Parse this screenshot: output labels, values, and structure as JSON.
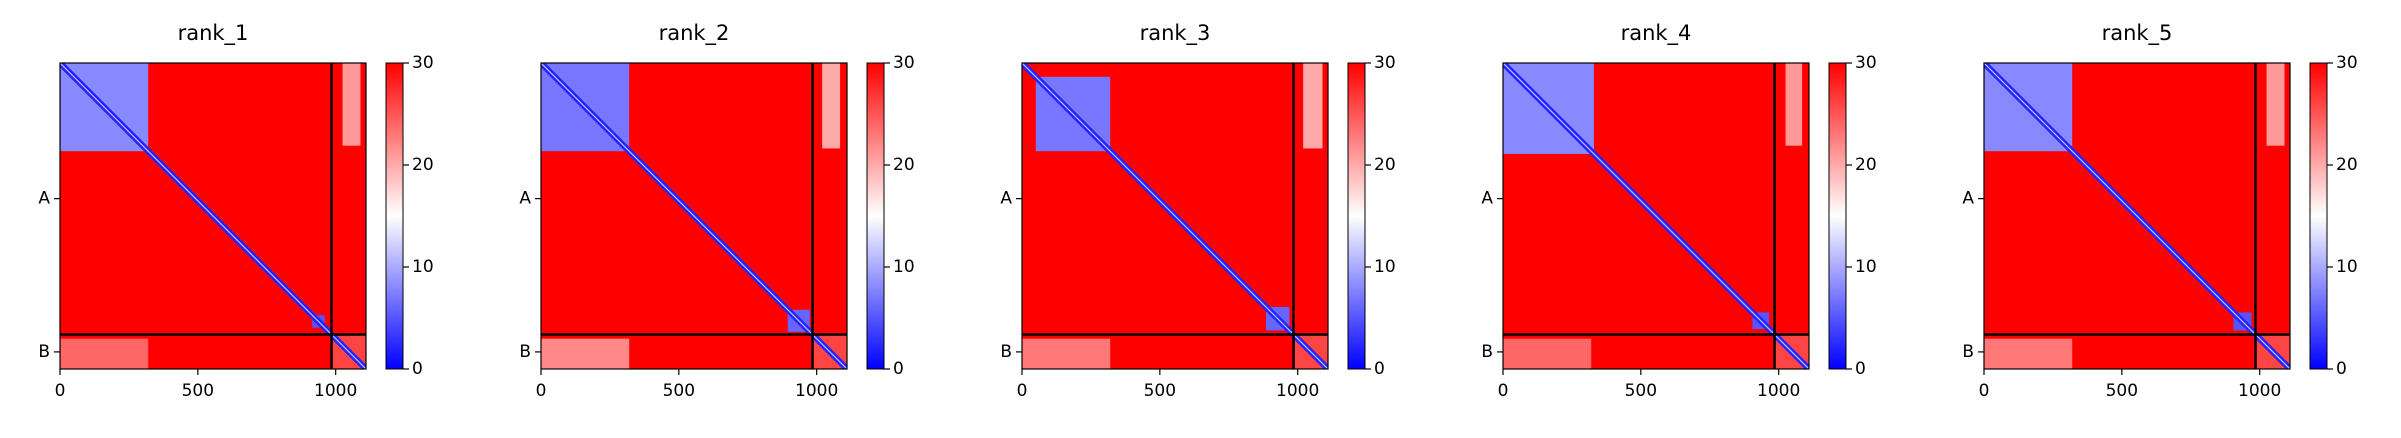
{
  "chart_data": [
    {
      "type": "heatmap",
      "title": "rank_1",
      "xlim": [
        0,
        1110
      ],
      "xticks": [
        0,
        500,
        1000
      ],
      "ylim": [
        1110,
        0
      ],
      "yticks": [
        {
          "value": 492,
          "label": "A"
        },
        {
          "value": 1048,
          "label": "B"
        }
      ],
      "colors": [
        "#0000ff",
        "#ffffff",
        "#ff0000"
      ],
      "clim": [
        0,
        30
      ],
      "cticks": [
        0,
        10,
        20,
        30
      ],
      "chain_breaks": [
        985
      ],
      "regions": [
        {
          "x": [
            0,
            1110
          ],
          "y": [
            0,
            1110
          ],
          "value": 30
        },
        {
          "x": [
            0,
            320
          ],
          "y": [
            0,
            320
          ],
          "value": 8
        },
        {
          "x": [
            1025,
            1090
          ],
          "y": [
            0,
            300
          ],
          "value": 21
        },
        {
          "x": [
            0,
            320
          ],
          "y": [
            1000,
            1110
          ],
          "value": 24
        },
        {
          "x": [
            915,
            960
          ],
          "y": [
            915,
            960
          ],
          "value": 5
        },
        {
          "x": [
            985,
            1110
          ],
          "y": [
            985,
            1110
          ],
          "value": 26
        }
      ],
      "diagonal": {
        "range": [
          0,
          1110
        ],
        "value": 2
      }
    },
    {
      "type": "heatmap",
      "title": "rank_2",
      "xlim": [
        0,
        1110
      ],
      "xticks": [
        0,
        500,
        1000
      ],
      "ylim": [
        1110,
        0
      ],
      "yticks": [
        {
          "value": 492,
          "label": "A"
        },
        {
          "value": 1048,
          "label": "B"
        }
      ],
      "colors": [
        "#0000ff",
        "#ffffff",
        "#ff0000"
      ],
      "clim": [
        0,
        30
      ],
      "cticks": [
        0,
        10,
        20,
        30
      ],
      "chain_breaks": [
        985
      ],
      "regions": [
        {
          "x": [
            0,
            1110
          ],
          "y": [
            0,
            1110
          ],
          "value": 30
        },
        {
          "x": [
            0,
            320
          ],
          "y": [
            0,
            320
          ],
          "value": 7
        },
        {
          "x": [
            1020,
            1085
          ],
          "y": [
            0,
            310
          ],
          "value": 20
        },
        {
          "x": [
            0,
            320
          ],
          "y": [
            1000,
            1110
          ],
          "value": 22
        },
        {
          "x": [
            895,
            975
          ],
          "y": [
            895,
            975
          ],
          "value": 6
        },
        {
          "x": [
            985,
            1110
          ],
          "y": [
            985,
            1110
          ],
          "value": 26
        }
      ],
      "diagonal": {
        "range": [
          0,
          1110
        ],
        "value": 2
      }
    },
    {
      "type": "heatmap",
      "title": "rank_3",
      "xlim": [
        0,
        1110
      ],
      "xticks": [
        0,
        500,
        1000
      ],
      "ylim": [
        1110,
        0
      ],
      "yticks": [
        {
          "value": 492,
          "label": "A"
        },
        {
          "value": 1048,
          "label": "B"
        }
      ],
      "colors": [
        "#0000ff",
        "#ffffff",
        "#ff0000"
      ],
      "clim": [
        0,
        30
      ],
      "cticks": [
        0,
        10,
        20,
        30
      ],
      "chain_breaks": [
        985
      ],
      "regions": [
        {
          "x": [
            0,
            1110
          ],
          "y": [
            0,
            1110
          ],
          "value": 30
        },
        {
          "x": [
            50,
            320
          ],
          "y": [
            50,
            320
          ],
          "value": 7
        },
        {
          "x": [
            1020,
            1090
          ],
          "y": [
            0,
            310
          ],
          "value": 20
        },
        {
          "x": [
            0,
            320
          ],
          "y": [
            1000,
            1110
          ],
          "value": 23
        },
        {
          "x": [
            885,
            970
          ],
          "y": [
            885,
            970
          ],
          "value": 6
        },
        {
          "x": [
            985,
            1110
          ],
          "y": [
            985,
            1110
          ],
          "value": 26
        }
      ],
      "diagonal": {
        "range": [
          0,
          1110
        ],
        "value": 2
      }
    },
    {
      "type": "heatmap",
      "title": "rank_4",
      "xlim": [
        0,
        1110
      ],
      "xticks": [
        0,
        500,
        1000
      ],
      "ylim": [
        1110,
        0
      ],
      "yticks": [
        {
          "value": 492,
          "label": "A"
        },
        {
          "value": 1048,
          "label": "B"
        }
      ],
      "colors": [
        "#0000ff",
        "#ffffff",
        "#ff0000"
      ],
      "clim": [
        0,
        30
      ],
      "cticks": [
        0,
        10,
        20,
        30
      ],
      "chain_breaks": [
        985
      ],
      "regions": [
        {
          "x": [
            0,
            1110
          ],
          "y": [
            0,
            1110
          ],
          "value": 30
        },
        {
          "x": [
            0,
            330
          ],
          "y": [
            0,
            330
          ],
          "value": 8
        },
        {
          "x": [
            1025,
            1085
          ],
          "y": [
            0,
            300
          ],
          "value": 21
        },
        {
          "x": [
            0,
            320
          ],
          "y": [
            1000,
            1110
          ],
          "value": 24
        },
        {
          "x": [
            905,
            965
          ],
          "y": [
            905,
            965
          ],
          "value": 5
        },
        {
          "x": [
            985,
            1110
          ],
          "y": [
            985,
            1110
          ],
          "value": 26
        }
      ],
      "diagonal": {
        "range": [
          0,
          1110
        ],
        "value": 2
      }
    },
    {
      "type": "heatmap",
      "title": "rank_5",
      "xlim": [
        0,
        1110
      ],
      "xticks": [
        0,
        500,
        1000
      ],
      "ylim": [
        1110,
        0
      ],
      "yticks": [
        {
          "value": 492,
          "label": "A"
        },
        {
          "value": 1048,
          "label": "B"
        }
      ],
      "colors": [
        "#0000ff",
        "#ffffff",
        "#ff0000"
      ],
      "clim": [
        0,
        30
      ],
      "cticks": [
        0,
        10,
        20,
        30
      ],
      "chain_breaks": [
        985
      ],
      "regions": [
        {
          "x": [
            0,
            1110
          ],
          "y": [
            0,
            1110
          ],
          "value": 30
        },
        {
          "x": [
            0,
            320
          ],
          "y": [
            0,
            320
          ],
          "value": 8
        },
        {
          "x": [
            1025,
            1090
          ],
          "y": [
            0,
            300
          ],
          "value": 21
        },
        {
          "x": [
            0,
            320
          ],
          "y": [
            1000,
            1110
          ],
          "value": 23
        },
        {
          "x": [
            905,
            970
          ],
          "y": [
            905,
            970
          ],
          "value": 5
        },
        {
          "x": [
            985,
            1110
          ],
          "y": [
            985,
            1110
          ],
          "value": 26
        }
      ],
      "diagonal": {
        "range": [
          0,
          1110
        ],
        "value": 2
      }
    }
  ]
}
